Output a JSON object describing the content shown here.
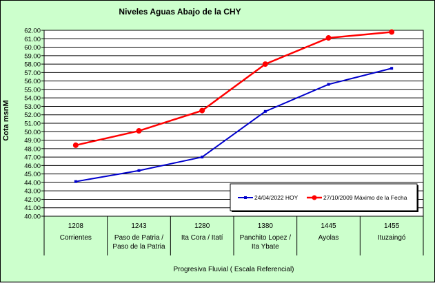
{
  "title": "Niveles Aguas Abajo de la CHY",
  "colors": {
    "background": "#ccffcc",
    "plot": "#ffffff",
    "series_hoy": "#0000cc",
    "series_max": "#ff0000"
  },
  "chart_data": {
    "type": "line",
    "title": "Niveles Aguas Abajo de la CHY",
    "ylabel": "Cota msnM",
    "xlabel": "Progresiva Fluvial ( Escala Referencial)",
    "ylim": [
      40,
      62
    ],
    "yticks": [
      "62.00",
      "61.00",
      "60.00",
      "59.00",
      "58.00",
      "57.00",
      "56.00",
      "55.00",
      "54.00",
      "53.00",
      "52.00",
      "51.00",
      "50.00",
      "49.00",
      "48.00",
      "47.00",
      "46.00",
      "45.00",
      "44.00",
      "43.00",
      "42.00",
      "41.00",
      "40.00"
    ],
    "grid": true,
    "legend_position": "bottom-right",
    "categories": [
      {
        "progresiva": "1208",
        "lines": [
          "Corrientes"
        ]
      },
      {
        "progresiva": "1243",
        "lines": [
          "Paso de Patria /",
          "Paso de la Patria"
        ]
      },
      {
        "progresiva": "1280",
        "lines": [
          "Ita Cora / Itatí"
        ]
      },
      {
        "progresiva": "1380",
        "lines": [
          "Panchito Lopez /",
          "Ita Ybate"
        ]
      },
      {
        "progresiva": "1445",
        "lines": [
          "Ayolas"
        ]
      },
      {
        "progresiva": "1455",
        "lines": [
          "Ituzaingó"
        ]
      }
    ],
    "series": [
      {
        "name": "24/04/2022 HOY",
        "color": "#0000cc",
        "values": [
          44.1,
          45.4,
          47.0,
          52.4,
          55.6,
          57.5
        ]
      },
      {
        "name": "27/10/2009 Máximo de la Fecha",
        "color": "#ff0000",
        "values": [
          48.4,
          50.1,
          52.5,
          58.0,
          61.1,
          61.8
        ]
      }
    ]
  }
}
